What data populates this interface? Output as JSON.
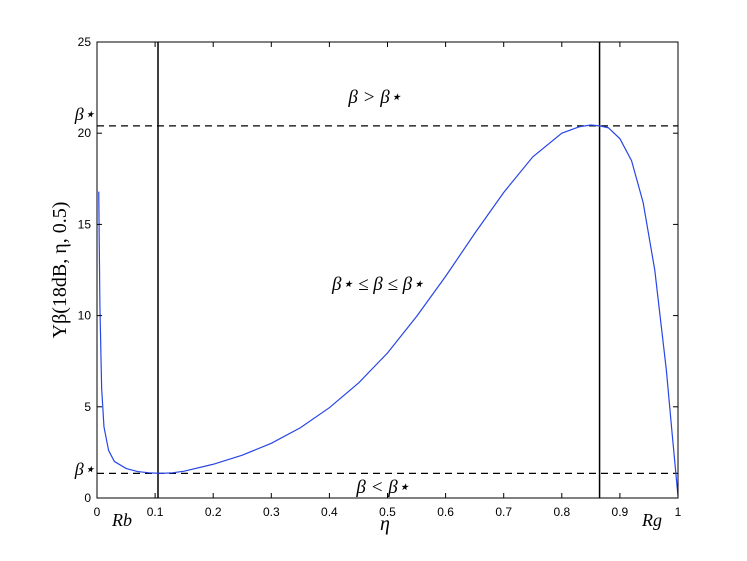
{
  "chart_data": {
    "type": "line",
    "xlabel": "η",
    "ylabel": "Υβ(18dB, η, 0.5)",
    "xlim": [
      0,
      1
    ],
    "ylim": [
      0,
      25
    ],
    "x_ticks": [
      "0",
      "0.1",
      "0.2",
      "0.3",
      "0.4",
      "0.5",
      "0.6",
      "0.7",
      "0.8",
      "0.9",
      "1"
    ],
    "y_ticks": [
      "0",
      "5",
      "10",
      "15",
      "20",
      "25"
    ],
    "grid": false,
    "series": [
      {
        "color": "#2846e6",
        "x": [
          0.003,
          0.005,
          0.008,
          0.012,
          0.02,
          0.03,
          0.05,
          0.07,
          0.09,
          0.11,
          0.13,
          0.15,
          0.2,
          0.25,
          0.3,
          0.35,
          0.4,
          0.45,
          0.5,
          0.55,
          0.6,
          0.65,
          0.7,
          0.75,
          0.8,
          0.83,
          0.85,
          0.865,
          0.88,
          0.9,
          0.92,
          0.94,
          0.96,
          0.98,
          0.99,
          1.0
        ],
        "y": [
          16.8,
          10.5,
          6.0,
          3.9,
          2.6,
          2.0,
          1.62,
          1.45,
          1.38,
          1.35,
          1.38,
          1.47,
          1.85,
          2.35,
          3.0,
          3.85,
          4.95,
          6.3,
          7.95,
          9.95,
          12.15,
          14.5,
          16.75,
          18.7,
          20.0,
          20.35,
          20.45,
          20.4,
          20.3,
          19.7,
          18.5,
          16.2,
          12.5,
          7.0,
          3.5,
          0.1
        ]
      }
    ],
    "reference_lines": {
      "horizontal": [
        {
          "y": 20.4,
          "label": "β⋆ (upper)",
          "style": "dashed"
        },
        {
          "y": 1.35,
          "label": "β⋆ (lower)",
          "style": "dashed"
        }
      ],
      "vertical": [
        {
          "x": 0.105,
          "label": "Rb"
        },
        {
          "x": 0.865,
          "label": "Rg"
        }
      ]
    },
    "annotations": {
      "upper_region": "β > β⋆",
      "middle_region": "β⋆ ≤ β ≤ β⋆",
      "lower_region": "β < β⋆",
      "upper_marker": "β⋆",
      "lower_marker": "β⋆",
      "rb_label": "Rb",
      "rg_label": "Rg"
    }
  }
}
